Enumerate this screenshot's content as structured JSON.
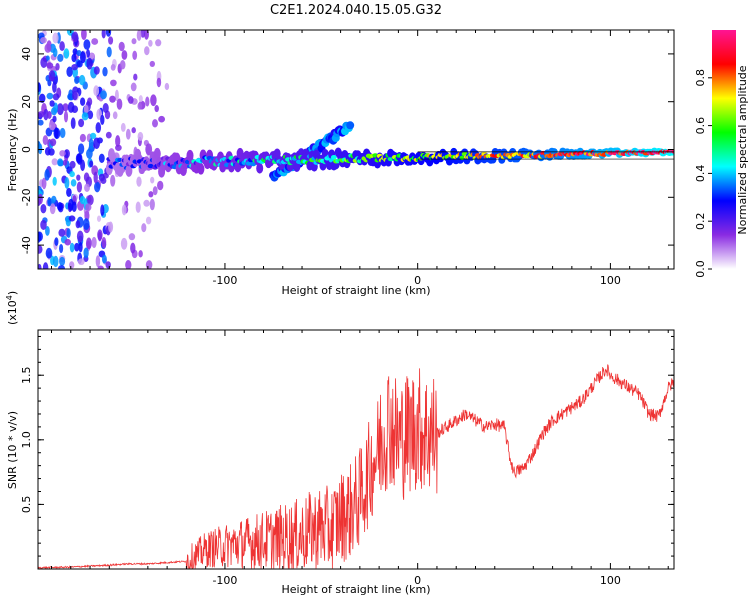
{
  "figure": {
    "title": "C2E1.2024.040.15.05.G32"
  },
  "chart_data": [
    {
      "type": "heatmap",
      "name": "spectrogram",
      "xlabel": "Height of straight line (km)",
      "ylabel": "Frequency (Hz)",
      "xlim": [
        -197,
        133
      ],
      "ylim": [
        -50,
        50
      ],
      "xticks": [
        -100,
        0,
        100
      ],
      "xtick_labels": [
        "-100",
        "0",
        "100"
      ],
      "yticks": [
        -40,
        -20,
        0,
        20,
        40
      ],
      "ytick_labels": [
        "-40",
        "-20",
        "0",
        "20",
        "40"
      ],
      "grid": false,
      "features": [
        {
          "desc": "scattered noise",
          "x": [
            -197,
            -160
          ],
          "y": [
            -50,
            50
          ],
          "amplitude": 0.15
        },
        {
          "desc": "main carrier trace",
          "x": [
            -160,
            133
          ],
          "y_center": [
            -6,
            -1
          ],
          "amplitude_start": 0.2,
          "amplitude_end": 0.95
        },
        {
          "desc": "secondary trace",
          "x": [
            -75,
            -35
          ],
          "y_center": [
            -12,
            10
          ],
          "amplitude": 0.25
        }
      ],
      "colorbar": {
        "label": "Normalized spectral amplitude",
        "range": [
          0,
          1
        ],
        "ticks": [
          0.0,
          0.2,
          0.4,
          0.6,
          0.8
        ],
        "tick_labels": [
          "0.0",
          "0.2",
          "0.4",
          "0.6",
          "0.8"
        ],
        "colors": [
          "#ffffff",
          "#8a2be2",
          "#0000ff",
          "#00ffff",
          "#00ff00",
          "#ffff00",
          "#ff0000",
          "#ff1493"
        ]
      }
    },
    {
      "type": "line",
      "name": "snr",
      "xlabel": "Height of straight line (km)",
      "ylabel": "SNR (10 * v/v)",
      "y_multiplier": "(x10",
      "y_multiplier_exp": "4",
      "y_multiplier_close": ")",
      "xlim": [
        -197,
        133
      ],
      "ylim": [
        0,
        1.85
      ],
      "xticks": [
        -100,
        0,
        100
      ],
      "xtick_labels": [
        "-100",
        "0",
        "100"
      ],
      "yticks": [
        0.5,
        1.0,
        1.5
      ],
      "ytick_labels": [
        "0.5",
        "1.0",
        "1.5"
      ],
      "grid": false,
      "color": "#ee3333",
      "series": [
        {
          "x": [
            -197,
            -180,
            -160,
            -150,
            -140,
            -130,
            -120,
            -115,
            -110,
            -100,
            -90,
            -80,
            -70,
            -60,
            -55,
            -50,
            -45,
            -40,
            -35,
            -30,
            -25,
            -20,
            -15,
            -12,
            -10,
            -5,
            0,
            5,
            10,
            15,
            20,
            25,
            30,
            35,
            40,
            45,
            48,
            50,
            55,
            60,
            65,
            70,
            75,
            80,
            85,
            90,
            95,
            98,
            100,
            105,
            110,
            115,
            120,
            125,
            130,
            133
          ],
          "y": [
            0.01,
            0.015,
            0.03,
            0.04,
            0.04,
            0.05,
            0.06,
            0.1,
            0.15,
            0.18,
            0.2,
            0.22,
            0.24,
            0.26,
            0.3,
            0.32,
            0.3,
            0.4,
            0.45,
            0.55,
            0.75,
            0.95,
            1.15,
            1.05,
            1.0,
            1.05,
            1.1,
            1.05,
            1.05,
            1.1,
            1.15,
            1.2,
            1.15,
            1.1,
            1.12,
            1.1,
            0.85,
            0.75,
            0.78,
            0.9,
            1.05,
            1.15,
            1.2,
            1.25,
            1.3,
            1.4,
            1.5,
            1.55,
            1.5,
            1.45,
            1.4,
            1.35,
            1.2,
            1.18,
            1.4,
            1.45
          ]
        }
      ]
    }
  ]
}
